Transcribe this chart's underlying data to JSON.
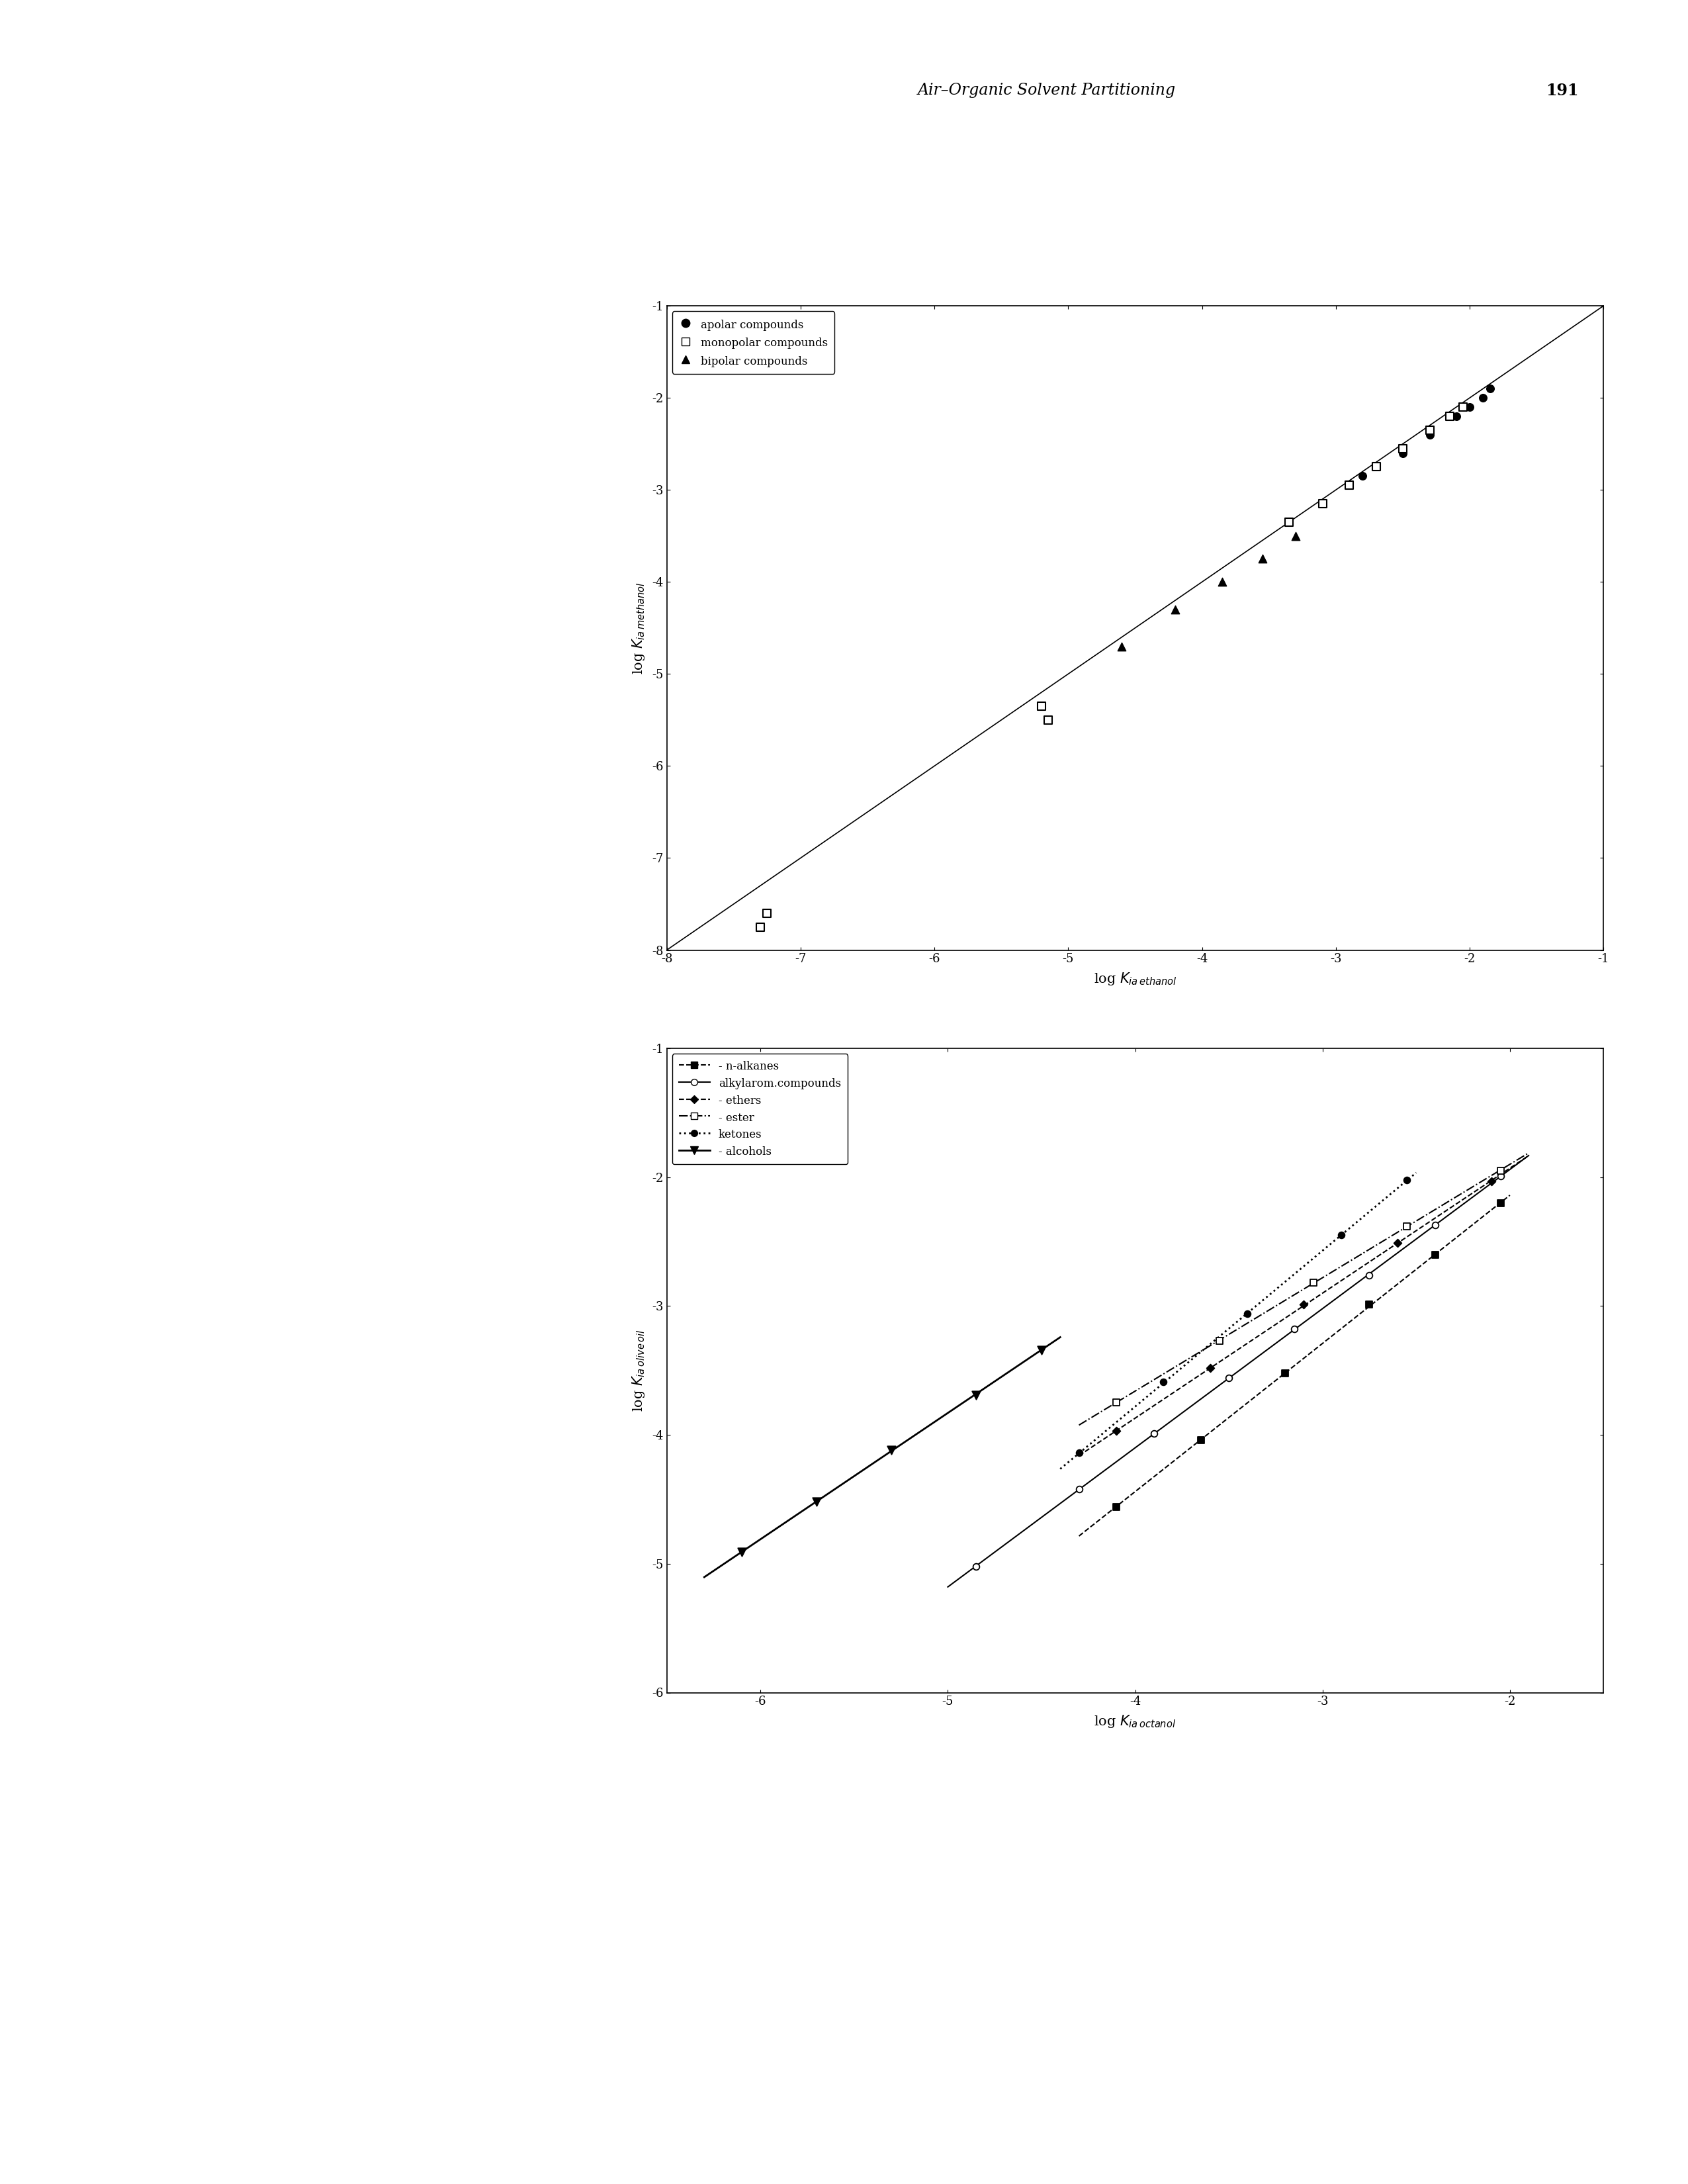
{
  "page": {
    "header_text": "Air–Organic Solvent Partitioning",
    "header_page": "191",
    "header_italic": true
  },
  "fig66": {
    "xlim": [
      -8,
      -1
    ],
    "ylim": [
      -8,
      -1
    ],
    "xticks": [
      -8,
      -7,
      -6,
      -5,
      -4,
      -3,
      -2,
      -1
    ],
    "yticks": [
      -8,
      -7,
      -6,
      -5,
      -4,
      -3,
      -2,
      -1
    ],
    "xlabel": "log $K_{ia\\,ethanol}$",
    "ylabel": "log $K_{ia\\,methanol}$",
    "diag_line": [
      -8,
      -1
    ],
    "apolar_x": [
      -3.1,
      -2.8,
      -2.5,
      -2.3,
      -2.1,
      -2.0,
      -1.9,
      -1.85
    ],
    "apolar_y": [
      -3.15,
      -2.85,
      -2.6,
      -2.4,
      -2.2,
      -2.1,
      -2.0,
      -1.9
    ],
    "monopolar_x": [
      -7.25,
      -7.3,
      -5.2,
      -5.15,
      -3.35,
      -3.1,
      -2.9,
      -2.7,
      -2.5,
      -2.3,
      -2.15,
      -2.05
    ],
    "monopolar_y": [
      -7.6,
      -7.75,
      -5.35,
      -5.5,
      -3.35,
      -3.15,
      -2.95,
      -2.75,
      -2.55,
      -2.35,
      -2.2,
      -2.1
    ],
    "bipolar_x": [
      -4.6,
      -4.2,
      -3.85,
      -3.55,
      -3.3
    ],
    "bipolar_y": [
      -4.7,
      -4.3,
      -4.0,
      -3.75,
      -3.5
    ],
    "legend_labels": [
      "apolar compounds",
      "monopolar compounds",
      "bipolar compounds"
    ]
  },
  "fig67": {
    "xlim": [
      -6.5,
      -1.5
    ],
    "ylim": [
      -6.0,
      -1.0
    ],
    "xticks": [
      -6,
      -5,
      -4,
      -3,
      -2
    ],
    "yticks": [
      -6,
      -5,
      -4,
      -3,
      -2,
      -1
    ],
    "xlabel": "log $K_{ia\\,octanol}$",
    "ylabel": "log $K_{ia\\,olive\\,oil}$",
    "series": {
      "alkanes": {
        "label": "- n-alkanes",
        "linestyle": "--",
        "marker": "s",
        "markerfacecolor": "black",
        "markeredgecolor": "black",
        "color": "black",
        "linewidth": 1.5,
        "markersize": 7,
        "a": 1.15,
        "b": 0.16,
        "x_range": [
          -4.3,
          -2.0
        ],
        "data_x": [
          -4.1,
          -3.65,
          -3.2,
          -2.75,
          -2.4,
          -2.05
        ],
        "data_y": [
          -4.56,
          -4.04,
          -3.52,
          -2.99,
          -2.6,
          -2.2
        ]
      },
      "alkyl_aromatic": {
        "label": "alkylarom.compounds",
        "linestyle": "-",
        "marker": "o",
        "markerfacecolor": "white",
        "markeredgecolor": "black",
        "color": "black",
        "linewidth": 1.5,
        "markersize": 7,
        "a": 1.08,
        "b": 0.22,
        "x_range": [
          -5.0,
          -1.9
        ],
        "data_x": [
          -4.85,
          -4.3,
          -3.9,
          -3.5,
          -3.15,
          -2.75,
          -2.4,
          -2.05
        ],
        "data_y": [
          -5.02,
          -4.42,
          -3.99,
          -3.56,
          -3.18,
          -2.76,
          -2.37,
          -1.99
        ]
      },
      "ethers": {
        "label": "- ethers",
        "linestyle": "--",
        "marker": "D",
        "markerfacecolor": "black",
        "markeredgecolor": "black",
        "color": "black",
        "linewidth": 1.5,
        "markersize": 6,
        "a": 0.97,
        "b": 0.01,
        "x_range": [
          -4.3,
          -1.9
        ],
        "data_x": [
          -4.1,
          -3.6,
          -3.1,
          -2.6,
          -2.1
        ],
        "data_y": [
          -3.97,
          -3.48,
          -2.99,
          -2.51,
          -2.03
        ]
      },
      "esters": {
        "label": "- ester",
        "linestyle": "-.",
        "marker": "s",
        "markerfacecolor": "white",
        "markeredgecolor": "black",
        "color": "black",
        "linewidth": 1.5,
        "markersize": 7,
        "a": 0.88,
        "b": -0.14,
        "x_range": [
          -4.3,
          -1.9
        ],
        "data_x": [
          -4.1,
          -3.55,
          -3.05,
          -2.55,
          -2.05
        ],
        "data_y": [
          -3.75,
          -3.27,
          -2.82,
          -2.38,
          -1.95
        ]
      },
      "ketones": {
        "label": "ketones",
        "linestyle": ":",
        "marker": "o",
        "markerfacecolor": "black",
        "markeredgecolor": "black",
        "color": "black",
        "linewidth": 2.0,
        "markersize": 7,
        "a": 1.21,
        "b": 1.06,
        "x_range": [
          -4.4,
          -2.5
        ],
        "data_x": [
          -4.3,
          -3.85,
          -3.4,
          -2.9,
          -2.55
        ],
        "data_y": [
          -4.14,
          -3.59,
          -3.06,
          -2.45,
          -2.02
        ]
      },
      "alcohols": {
        "label": "- alcohols",
        "linestyle": "-",
        "marker": "v",
        "markerfacecolor": "black",
        "markeredgecolor": "black",
        "color": "black",
        "linewidth": 2.0,
        "markersize": 9,
        "a": 0.98,
        "b": 1.07,
        "x_range": [
          -6.3,
          -4.4
        ],
        "data_x": [
          -6.1,
          -5.7,
          -5.3,
          -4.85,
          -4.5
        ],
        "data_y": [
          -4.91,
          -4.52,
          -4.12,
          -3.69,
          -3.34
        ]
      }
    }
  }
}
